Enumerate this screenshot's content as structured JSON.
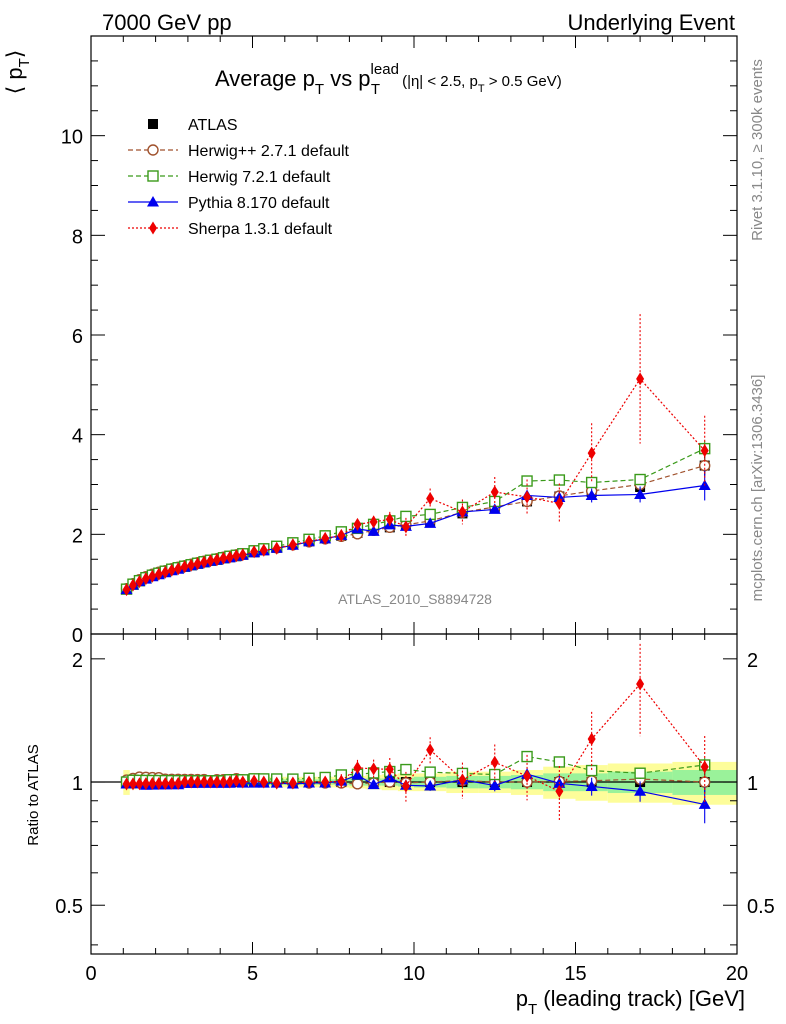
{
  "header": {
    "left": "7000 GeV pp",
    "right": "Underlying Event"
  },
  "side_labels": {
    "rivet": "Rivet 3.1.10, ≥ 300k events",
    "mcplots": "mcplots.cern.ch [arXiv:1306.3436]"
  },
  "chart_data": [
    {
      "type": "line",
      "title": {
        "main": "Average p",
        "main_sub": "T",
        "vs": " vs p",
        "vs_sup": "lead",
        "vs_sub": "T",
        "cuts_a": "(|η| < 2.5, p",
        "cuts_sub": "T",
        "cuts_b": " > 0.5 GeV)"
      },
      "ylabel": {
        "main": "⟨ p",
        "sub": "T",
        "close": "⟩"
      },
      "xlabel": {
        "main": "p",
        "sub": "T",
        "rest": " (leading track) [GeV]"
      },
      "watermark": "ATLAS_2010_S8894728",
      "xlim": [
        0,
        20
      ],
      "ylim": [
        0,
        12
      ],
      "x_ticks": [
        0,
        5,
        10,
        15,
        20
      ],
      "y_ticks": [
        0,
        2,
        4,
        6,
        8,
        10
      ],
      "grid": false,
      "legend_position": "top-left",
      "series": [
        {
          "name": "ATLAS",
          "color": "#000000",
          "marker": "square-filled",
          "style": "none",
          "x": [
            1.1,
            1.3,
            1.5,
            1.7,
            1.9,
            2.1,
            2.3,
            2.5,
            2.7,
            2.9,
            3.1,
            3.3,
            3.5,
            3.7,
            3.9,
            4.1,
            4.3,
            4.5,
            4.7,
            5.05,
            5.35,
            5.75,
            6.25,
            6.75,
            7.25,
            7.75,
            8.25,
            8.75,
            9.25,
            9.75,
            10.5,
            11.5,
            12.5,
            13.5,
            14.5,
            15.5,
            17,
            19
          ],
          "y": [
            0.9,
            0.99,
            1.06,
            1.12,
            1.17,
            1.21,
            1.25,
            1.29,
            1.32,
            1.35,
            1.38,
            1.41,
            1.44,
            1.47,
            1.49,
            1.52,
            1.54,
            1.56,
            1.59,
            1.64,
            1.68,
            1.73,
            1.8,
            1.86,
            1.92,
            1.97,
            2.03,
            2.09,
            2.14,
            2.2,
            2.27,
            2.42,
            2.55,
            2.66,
            2.76,
            2.85,
            2.95,
            3.38
          ],
          "yerr": [
            0.02,
            0.02,
            0.02,
            0.02,
            0.02,
            0.02,
            0.02,
            0.02,
            0.02,
            0.02,
            0.02,
            0.02,
            0.02,
            0.02,
            0.02,
            0.02,
            0.02,
            0.02,
            0.02,
            0.02,
            0.02,
            0.02,
            0.03,
            0.03,
            0.03,
            0.03,
            0.04,
            0.04,
            0.05,
            0.05,
            0.06,
            0.07,
            0.08,
            0.09,
            0.1,
            0.12,
            0.15,
            0.2
          ]
        },
        {
          "name": "Herwig++ 2.7.1 default",
          "color": "#a0522d",
          "marker": "circle-open",
          "style": "dashed",
          "x": [
            1.1,
            1.3,
            1.5,
            1.7,
            1.9,
            2.1,
            2.3,
            2.5,
            2.7,
            2.9,
            3.1,
            3.3,
            3.5,
            3.7,
            3.9,
            4.1,
            4.3,
            4.5,
            4.7,
            5.05,
            5.35,
            5.75,
            6.25,
            6.75,
            7.25,
            7.75,
            8.25,
            8.75,
            9.25,
            9.75,
            10.5,
            11.5,
            12.5,
            13.5,
            14.5,
            15.5,
            17,
            19
          ],
          "y": [
            0.91,
            1.01,
            1.09,
            1.15,
            1.2,
            1.24,
            1.27,
            1.31,
            1.34,
            1.37,
            1.4,
            1.43,
            1.46,
            1.48,
            1.51,
            1.54,
            1.56,
            1.59,
            1.61,
            1.66,
            1.69,
            1.73,
            1.79,
            1.85,
            1.91,
            1.96,
            2.01,
            2.08,
            2.14,
            2.19,
            2.27,
            2.44,
            2.55,
            2.66,
            2.77,
            2.87,
            3.0,
            3.38
          ],
          "yerr": [
            0.01,
            0.01,
            0.01,
            0.01,
            0.01,
            0.01,
            0.01,
            0.01,
            0.01,
            0.01,
            0.01,
            0.01,
            0.01,
            0.01,
            0.01,
            0.01,
            0.01,
            0.01,
            0.01,
            0.01,
            0.01,
            0.01,
            0.02,
            0.02,
            0.02,
            0.02,
            0.03,
            0.03,
            0.03,
            0.04,
            0.05,
            0.05,
            0.06,
            0.07,
            0.08,
            0.09,
            0.1,
            0.15
          ]
        },
        {
          "name": "Herwig 7.2.1 default",
          "color": "#3a9a1a",
          "marker": "square-open",
          "style": "dashed",
          "x": [
            1.1,
            1.3,
            1.5,
            1.7,
            1.9,
            2.1,
            2.3,
            2.5,
            2.7,
            2.9,
            3.1,
            3.3,
            3.5,
            3.7,
            3.9,
            4.1,
            4.3,
            4.5,
            4.7,
            5.05,
            5.35,
            5.75,
            6.25,
            6.75,
            7.25,
            7.75,
            8.25,
            8.75,
            9.25,
            9.75,
            10.5,
            11.5,
            12.5,
            13.5,
            14.5,
            15.5,
            17,
            19
          ],
          "y": [
            0.9,
            1.0,
            1.07,
            1.13,
            1.18,
            1.22,
            1.26,
            1.3,
            1.33,
            1.36,
            1.39,
            1.42,
            1.45,
            1.48,
            1.5,
            1.53,
            1.56,
            1.58,
            1.61,
            1.67,
            1.71,
            1.76,
            1.83,
            1.9,
            1.97,
            2.05,
            2.12,
            2.2,
            2.27,
            2.36,
            2.4,
            2.54,
            2.66,
            3.07,
            3.09,
            3.04,
            3.1,
            3.72
          ],
          "yerr": [
            0.01,
            0.01,
            0.01,
            0.01,
            0.01,
            0.01,
            0.01,
            0.01,
            0.01,
            0.01,
            0.01,
            0.01,
            0.01,
            0.01,
            0.01,
            0.01,
            0.01,
            0.01,
            0.01,
            0.01,
            0.01,
            0.02,
            0.02,
            0.02,
            0.02,
            0.02,
            0.03,
            0.03,
            0.03,
            0.04,
            0.05,
            0.05,
            0.06,
            0.07,
            0.08,
            0.1,
            0.1,
            0.15
          ]
        },
        {
          "name": "Pythia 8.170 default",
          "color": "#0000ee",
          "marker": "triangle-filled",
          "style": "solid",
          "x": [
            1.1,
            1.3,
            1.5,
            1.7,
            1.9,
            2.1,
            2.3,
            2.5,
            2.7,
            2.9,
            3.1,
            3.3,
            3.5,
            3.7,
            3.9,
            4.1,
            4.3,
            4.5,
            4.7,
            5.05,
            5.35,
            5.75,
            6.25,
            6.75,
            7.25,
            7.75,
            8.25,
            8.75,
            9.25,
            9.75,
            10.5,
            11.5,
            12.5,
            13.5,
            14.5,
            15.5,
            17,
            19
          ],
          "y": [
            0.89,
            0.98,
            1.05,
            1.1,
            1.15,
            1.19,
            1.23,
            1.27,
            1.3,
            1.34,
            1.37,
            1.4,
            1.43,
            1.46,
            1.48,
            1.51,
            1.53,
            1.56,
            1.58,
            1.63,
            1.67,
            1.72,
            1.78,
            1.85,
            1.91,
            1.98,
            2.11,
            2.06,
            2.19,
            2.16,
            2.22,
            2.45,
            2.5,
            2.78,
            2.74,
            2.78,
            2.8,
            2.98
          ],
          "yerr": [
            0.01,
            0.01,
            0.01,
            0.01,
            0.01,
            0.01,
            0.01,
            0.01,
            0.01,
            0.01,
            0.01,
            0.01,
            0.01,
            0.01,
            0.01,
            0.01,
            0.01,
            0.01,
            0.01,
            0.01,
            0.01,
            0.02,
            0.02,
            0.02,
            0.02,
            0.03,
            0.03,
            0.04,
            0.04,
            0.05,
            0.06,
            0.07,
            0.08,
            0.1,
            0.12,
            0.14,
            0.16,
            0.3
          ]
        },
        {
          "name": "Sherpa 1.3.1 default",
          "color": "#ee0000",
          "marker": "diamond-filled",
          "style": "dotted",
          "x": [
            1.1,
            1.3,
            1.5,
            1.7,
            1.9,
            2.1,
            2.3,
            2.5,
            2.7,
            2.9,
            3.1,
            3.3,
            3.5,
            3.7,
            3.9,
            4.1,
            4.3,
            4.5,
            4.7,
            5.05,
            5.35,
            5.75,
            6.25,
            6.75,
            7.25,
            7.75,
            8.25,
            8.75,
            9.25,
            9.75,
            10.5,
            11.5,
            12.5,
            13.5,
            14.5,
            15.5,
            17,
            19
          ],
          "y": [
            0.89,
            0.98,
            1.05,
            1.11,
            1.16,
            1.2,
            1.24,
            1.28,
            1.31,
            1.35,
            1.38,
            1.41,
            1.44,
            1.47,
            1.49,
            1.52,
            1.54,
            1.57,
            1.59,
            1.65,
            1.68,
            1.72,
            1.79,
            1.86,
            1.92,
            1.98,
            2.2,
            2.25,
            2.3,
            2.15,
            2.72,
            2.45,
            2.85,
            2.75,
            2.62,
            3.63,
            5.12,
            3.68
          ],
          "yerr": [
            0.01,
            0.01,
            0.01,
            0.01,
            0.01,
            0.01,
            0.01,
            0.01,
            0.01,
            0.01,
            0.01,
            0.01,
            0.01,
            0.01,
            0.01,
            0.01,
            0.02,
            0.02,
            0.02,
            0.03,
            0.03,
            0.04,
            0.05,
            0.05,
            0.06,
            0.08,
            0.1,
            0.12,
            0.15,
            0.18,
            0.2,
            0.25,
            0.3,
            0.35,
            0.4,
            0.6,
            1.3,
            0.7
          ]
        }
      ]
    },
    {
      "type": "line",
      "ylabel": "Ratio to ATLAS",
      "xlim": [
        0,
        20
      ],
      "ylim": [
        0.38,
        2.3
      ],
      "x_ticks": [
        0,
        5,
        10,
        15,
        20
      ],
      "y_tick_labels": [
        0.5,
        1,
        2
      ],
      "ratio_band": {
        "x_edges": [
          1.0,
          1.2,
          1.4,
          1.6,
          1.8,
          2.0,
          2.2,
          2.4,
          2.6,
          2.8,
          3.0,
          3.2,
          3.4,
          3.6,
          3.8,
          4.0,
          4.2,
          4.4,
          4.6,
          4.8,
          5.3,
          5.5,
          6.0,
          6.5,
          7.0,
          7.5,
          8.0,
          8.5,
          9.0,
          9.5,
          10.0,
          11.0,
          12.0,
          13.0,
          14.0,
          15.0,
          16.0,
          18.0,
          20.0
        ],
        "stat_rel": [
          0.03,
          0.02,
          0.015,
          0.015,
          0.015,
          0.015,
          0.015,
          0.015,
          0.015,
          0.015,
          0.015,
          0.015,
          0.015,
          0.015,
          0.015,
          0.015,
          0.015,
          0.015,
          0.015,
          0.015,
          0.015,
          0.015,
          0.015,
          0.015,
          0.015,
          0.015,
          0.02,
          0.02,
          0.02,
          0.025,
          0.03,
          0.035,
          0.035,
          0.04,
          0.05,
          0.05,
          0.06,
          0.07
        ],
        "total_rel": [
          0.07,
          0.04,
          0.03,
          0.03,
          0.03,
          0.03,
          0.03,
          0.03,
          0.03,
          0.03,
          0.03,
          0.03,
          0.03,
          0.03,
          0.03,
          0.03,
          0.03,
          0.03,
          0.03,
          0.03,
          0.03,
          0.03,
          0.03,
          0.03,
          0.03,
          0.03,
          0.035,
          0.04,
          0.045,
          0.05,
          0.05,
          0.06,
          0.06,
          0.07,
          0.09,
          0.1,
          0.11,
          0.12
        ]
      }
    }
  ]
}
